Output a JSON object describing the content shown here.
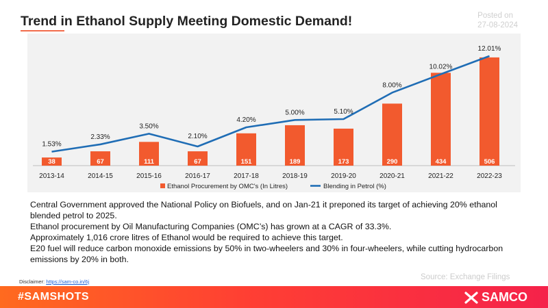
{
  "header": {
    "title": "Trend in Ethanol Supply Meeting Domestic Demand!",
    "posted_label": "Posted on",
    "posted_date": "27-08-2024"
  },
  "chart_data": {
    "type": "bar+line",
    "categories": [
      "2013-14",
      "2014-15",
      "2015-16",
      "2016-17",
      "2017-18",
      "2018-19",
      "2019-20",
      "2020-21",
      "2021-22",
      "2022-23"
    ],
    "series": [
      {
        "name": "Ethanol Procurement by OMC's (In Litres)",
        "kind": "bar",
        "values": [
          38,
          67,
          111,
          67,
          151,
          189,
          173,
          290,
          434,
          506
        ]
      },
      {
        "name": "Blending in Petrol (%)",
        "kind": "line",
        "values": [
          1.53,
          2.33,
          3.5,
          2.1,
          4.2,
          5.0,
          5.1,
          8.0,
          10.02,
          12.01
        ],
        "labels": [
          "1.53%",
          "2.33%",
          "3.50%",
          "2.10%",
          "4.20%",
          "5.00%",
          "5.10%",
          "8.00%",
          "10.02%",
          "12.01%"
        ]
      }
    ],
    "colors": {
      "bar": "#f25a2e",
      "line": "#1f6db5"
    },
    "bar_ylim": [
      0,
      560
    ],
    "line_ylim": [
      0,
      13.5
    ],
    "legend_position": "bottom",
    "grid": false
  },
  "description": [
    "Central Government approved the National Policy on Biofuels, and on Jan-21 it preponed its target of achieving 20% ethanol blended petrol to 2025.",
    "Ethanol procurement by Oil Manufacturing Companies (OMC’s) has grown at a CAGR of 33.3%.",
    "Approximately 1,016 crore litres of Ethanol would be required to achieve this target.",
    "E20 fuel will reduce carbon monoxide emissions by 50% in two-wheelers and 30% in four-wheelers, while cutting hydrocarbon emissions by 20% in both."
  ],
  "source": "Source: Exchange Filings",
  "disclaimer": {
    "label": "Disclaimer:",
    "link": "https://sam-co.in/6j"
  },
  "footer": {
    "hashtag": "#SAMSHOTS",
    "brand": "SAMCO"
  }
}
